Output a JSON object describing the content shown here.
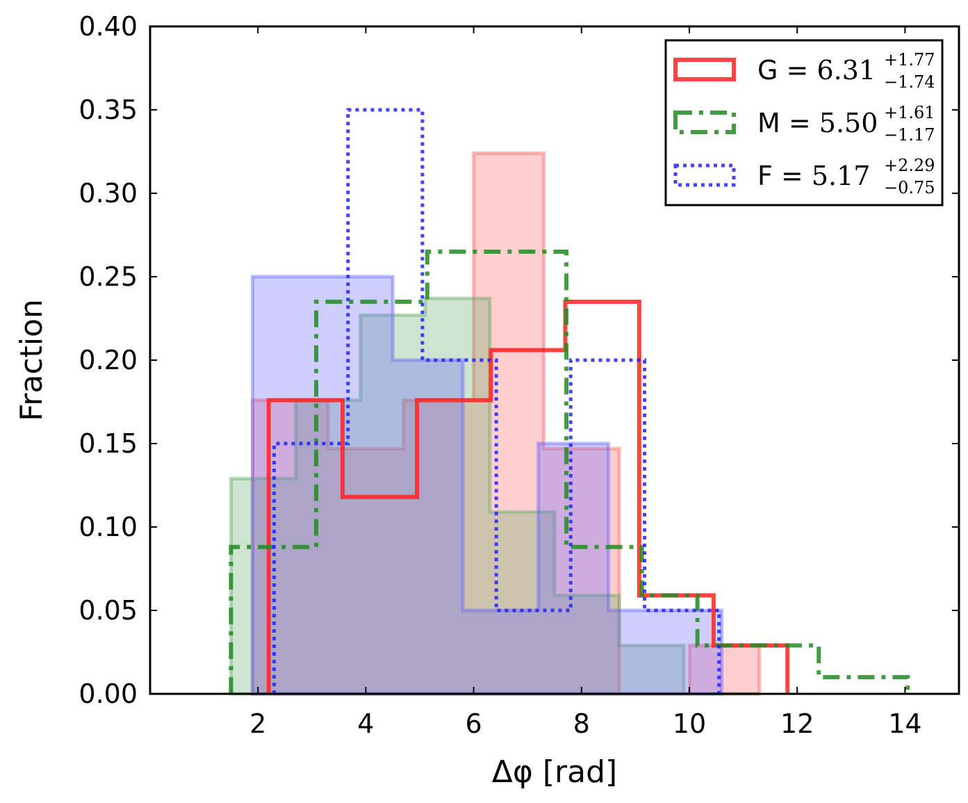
{
  "chart_data": {
    "type": "histogram",
    "title": "",
    "xlabel": "Δφ [rad]",
    "ylabel": "Fraction",
    "xlim": [
      0,
      15
    ],
    "ylim": [
      0,
      0.4
    ],
    "xticks": [
      2,
      4,
      6,
      8,
      10,
      12,
      14
    ],
    "xtick_labels": [
      "2",
      "4",
      "6",
      "8",
      "10",
      "12",
      "14"
    ],
    "yticks": [
      0.0,
      0.05,
      0.1,
      0.15,
      0.2,
      0.25,
      0.3,
      0.35,
      0.4
    ],
    "ytick_labels": [
      "0.00",
      "0.05",
      "0.10",
      "0.15",
      "0.20",
      "0.25",
      "0.30",
      "0.35",
      "0.40"
    ],
    "grid": false,
    "legend_position": "top-right",
    "series": [
      {
        "name": "G",
        "legend_prefix": "G = ",
        "median": "6.31",
        "err_plus": "+1.77",
        "err_minus": "−1.74",
        "color": "#ff2222",
        "linestyle": "solid",
        "edges": [
          2.2,
          3.57,
          4.95,
          6.32,
          7.7,
          9.07,
          10.45,
          11.82
        ],
        "values": [
          0.176,
          0.118,
          0.176,
          0.206,
          0.235,
          0.059,
          0.029
        ]
      },
      {
        "name": "M",
        "legend_prefix": "M = ",
        "median": "5.50",
        "err_plus": "+1.61",
        "err_minus": "−1.17",
        "color": "#228b22",
        "linestyle": "dashdot",
        "edges": [
          1.5,
          2.58,
          3.08,
          4.02,
          5.14,
          6.32,
          7.72,
          9.12,
          10.15,
          11.1,
          12.4,
          14.05
        ],
        "values": [
          0.088,
          0.088,
          0.235,
          0.235,
          0.265,
          0.265,
          0.088,
          0.059,
          0.029,
          0.029,
          0.01
        ]
      },
      {
        "name": "F",
        "legend_prefix": "F = ",
        "median": "5.17",
        "err_plus": "+2.29",
        "err_minus": "−0.75",
        "color": "#2222ff",
        "linestyle": "dotted",
        "edges": [
          2.3,
          3.67,
          5.05,
          6.42,
          7.8,
          9.17,
          10.55
        ],
        "values": [
          0.15,
          0.35,
          0.2,
          0.05,
          0.2,
          0.05
        ]
      }
    ],
    "filled_series": [
      {
        "name": "G-filled",
        "color": "#ff6666",
        "edges": [
          1.9,
          3.3,
          4.7,
          6.0,
          7.3,
          8.7,
          10.0,
          11.3
        ],
        "values": [
          0.176,
          0.147,
          0.176,
          0.324,
          0.147,
          0.0,
          0.029
        ]
      },
      {
        "name": "M-filled",
        "color": "#66aa66",
        "edges": [
          1.5,
          2.7,
          3.9,
          5.1,
          6.3,
          7.5,
          8.7,
          9.9,
          11.3
        ],
        "values": [
          0.129,
          0.176,
          0.227,
          0.237,
          0.109,
          0.059,
          0.029,
          0.0
        ]
      },
      {
        "name": "F-filled",
        "color": "#6666ff",
        "edges": [
          1.9,
          3.2,
          4.5,
          5.8,
          7.2,
          8.5,
          9.8,
          10.6
        ],
        "values": [
          0.25,
          0.25,
          0.2,
          0.05,
          0.15,
          0.05,
          0.05
        ]
      }
    ]
  }
}
